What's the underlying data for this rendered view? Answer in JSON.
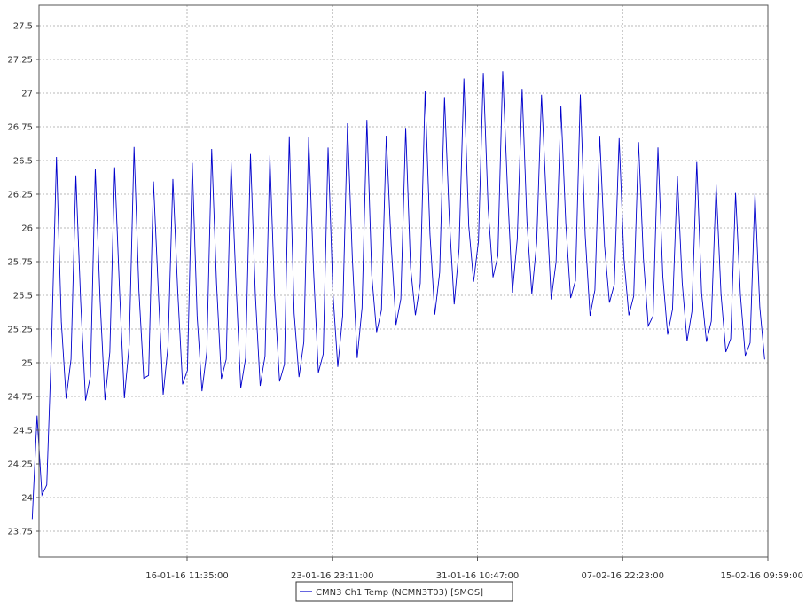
{
  "chart_data": {
    "type": "line",
    "title": "",
    "xlabel": "",
    "ylabel": "",
    "ylim": [
      23.6,
      27.6
    ],
    "y_ticks": [
      23.75,
      24,
      24.25,
      24.5,
      24.75,
      25,
      25.25,
      25.5,
      25.75,
      26,
      26.25,
      26.5,
      26.75,
      27,
      27.25,
      27.5
    ],
    "y_tick_labels": [
      "23.75",
      "24",
      "24.25",
      "24.5",
      "24.75",
      "25",
      "25.25",
      "25.5",
      "25.75",
      "26",
      "26.25",
      "26.5",
      "26.75",
      "27",
      "27.25",
      "27.5"
    ],
    "xlim": [
      "2016-01-08T12:00:00",
      "2016-02-15T09:59:00"
    ],
    "x_ticks": [
      "2016-01-16T11:35:00",
      "2016-01-23T23:11:00",
      "2016-01-31T10:47:00",
      "2016-02-07T22:23:00",
      "2016-02-15T09:59:00"
    ],
    "x_tick_labels": [
      "16-01-16 11:35:00",
      "23-01-16 23:11:00",
      "31-01-16 10:47:00",
      "07-02-16 22:23:00",
      "15-02-16 09:59:00"
    ],
    "grid": true,
    "legend_position": "bottom-center",
    "series": [
      {
        "name": "CMN3 Ch1 Temp (NCMN3T03) [SMOS]",
        "color": "#0000cc",
        "style": "daily oscillation between envelope minimum and maximum",
        "envelope": {
          "x": [
            "2016-01-08T12:00:00",
            "2016-01-09T05:00:00",
            "2016-01-09T08:00:00",
            "2016-01-10T00:00:00",
            "2016-01-12T00:00:00",
            "2016-01-16T11:35:00",
            "2016-01-20T00:00:00",
            "2016-01-23T23:11:00",
            "2016-01-27T00:00:00",
            "2016-01-29T12:00:00",
            "2016-01-31T10:47:00",
            "2016-02-03T00:00:00",
            "2016-02-05T12:00:00",
            "2016-02-05T22:00:00",
            "2016-02-06T04:00:00",
            "2016-02-07T22:23:00",
            "2016-02-10T00:00:00",
            "2016-02-12T12:00:00",
            "2016-02-15T09:59:00"
          ],
          "min": [
            23.72,
            23.74,
            24.75,
            24.72,
            24.72,
            24.78,
            24.82,
            24.95,
            25.15,
            25.38,
            25.52,
            25.52,
            25.42,
            25.35,
            25.35,
            25.32,
            25.22,
            25.1,
            25.02
          ],
          "max": [
            24.65,
            24.7,
            26.45,
            26.6,
            26.6,
            26.6,
            26.65,
            26.75,
            26.85,
            27.1,
            27.42,
            27.25,
            27.05,
            26.95,
            26.8,
            26.72,
            26.58,
            26.45,
            26.38
          ]
        }
      }
    ]
  }
}
